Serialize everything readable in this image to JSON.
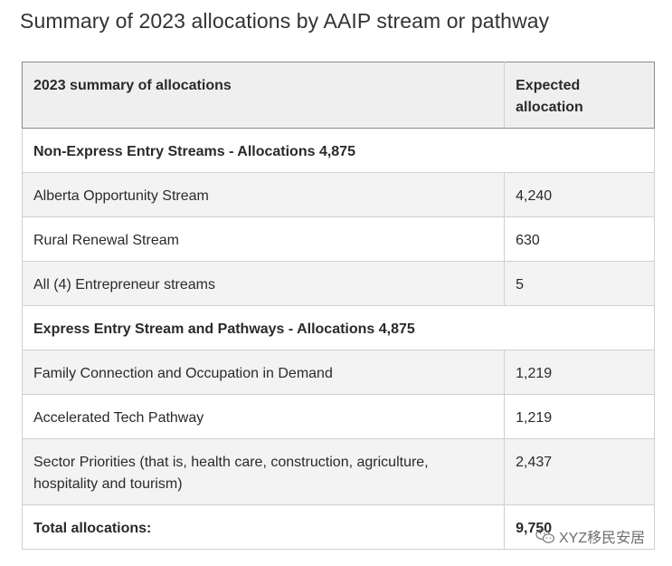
{
  "heading": "Summary of 2023 allocations by AAIP stream or pathway",
  "table": {
    "headers": [
      "2023 summary of allocations",
      "Expected allocation"
    ],
    "sections": [
      {
        "title": "Non-Express Entry Streams - Allocations 4,875",
        "rows": [
          {
            "label": "Alberta Opportunity Stream",
            "value": "4,240"
          },
          {
            "label": "Rural Renewal Stream",
            "value": "630"
          },
          {
            "label": "All (4) Entrepreneur streams",
            "value": "5"
          }
        ]
      },
      {
        "title": "Express Entry Stream and Pathways - Allocations 4,875",
        "rows": [
          {
            "label": "Family Connection and Occupation in Demand",
            "value": "1,219"
          },
          {
            "label": "Accelerated Tech Pathway",
            "value": "1,219"
          },
          {
            "label": "Sector Priorities (that is, health care, construction, agriculture, hospitality and tourism)",
            "value": "2,437"
          }
        ]
      }
    ],
    "total": {
      "label": "Total allocations:",
      "value": "9,750"
    }
  },
  "watermark": {
    "text": "XYZ移民安居",
    "icon": "wechat-icon"
  }
}
